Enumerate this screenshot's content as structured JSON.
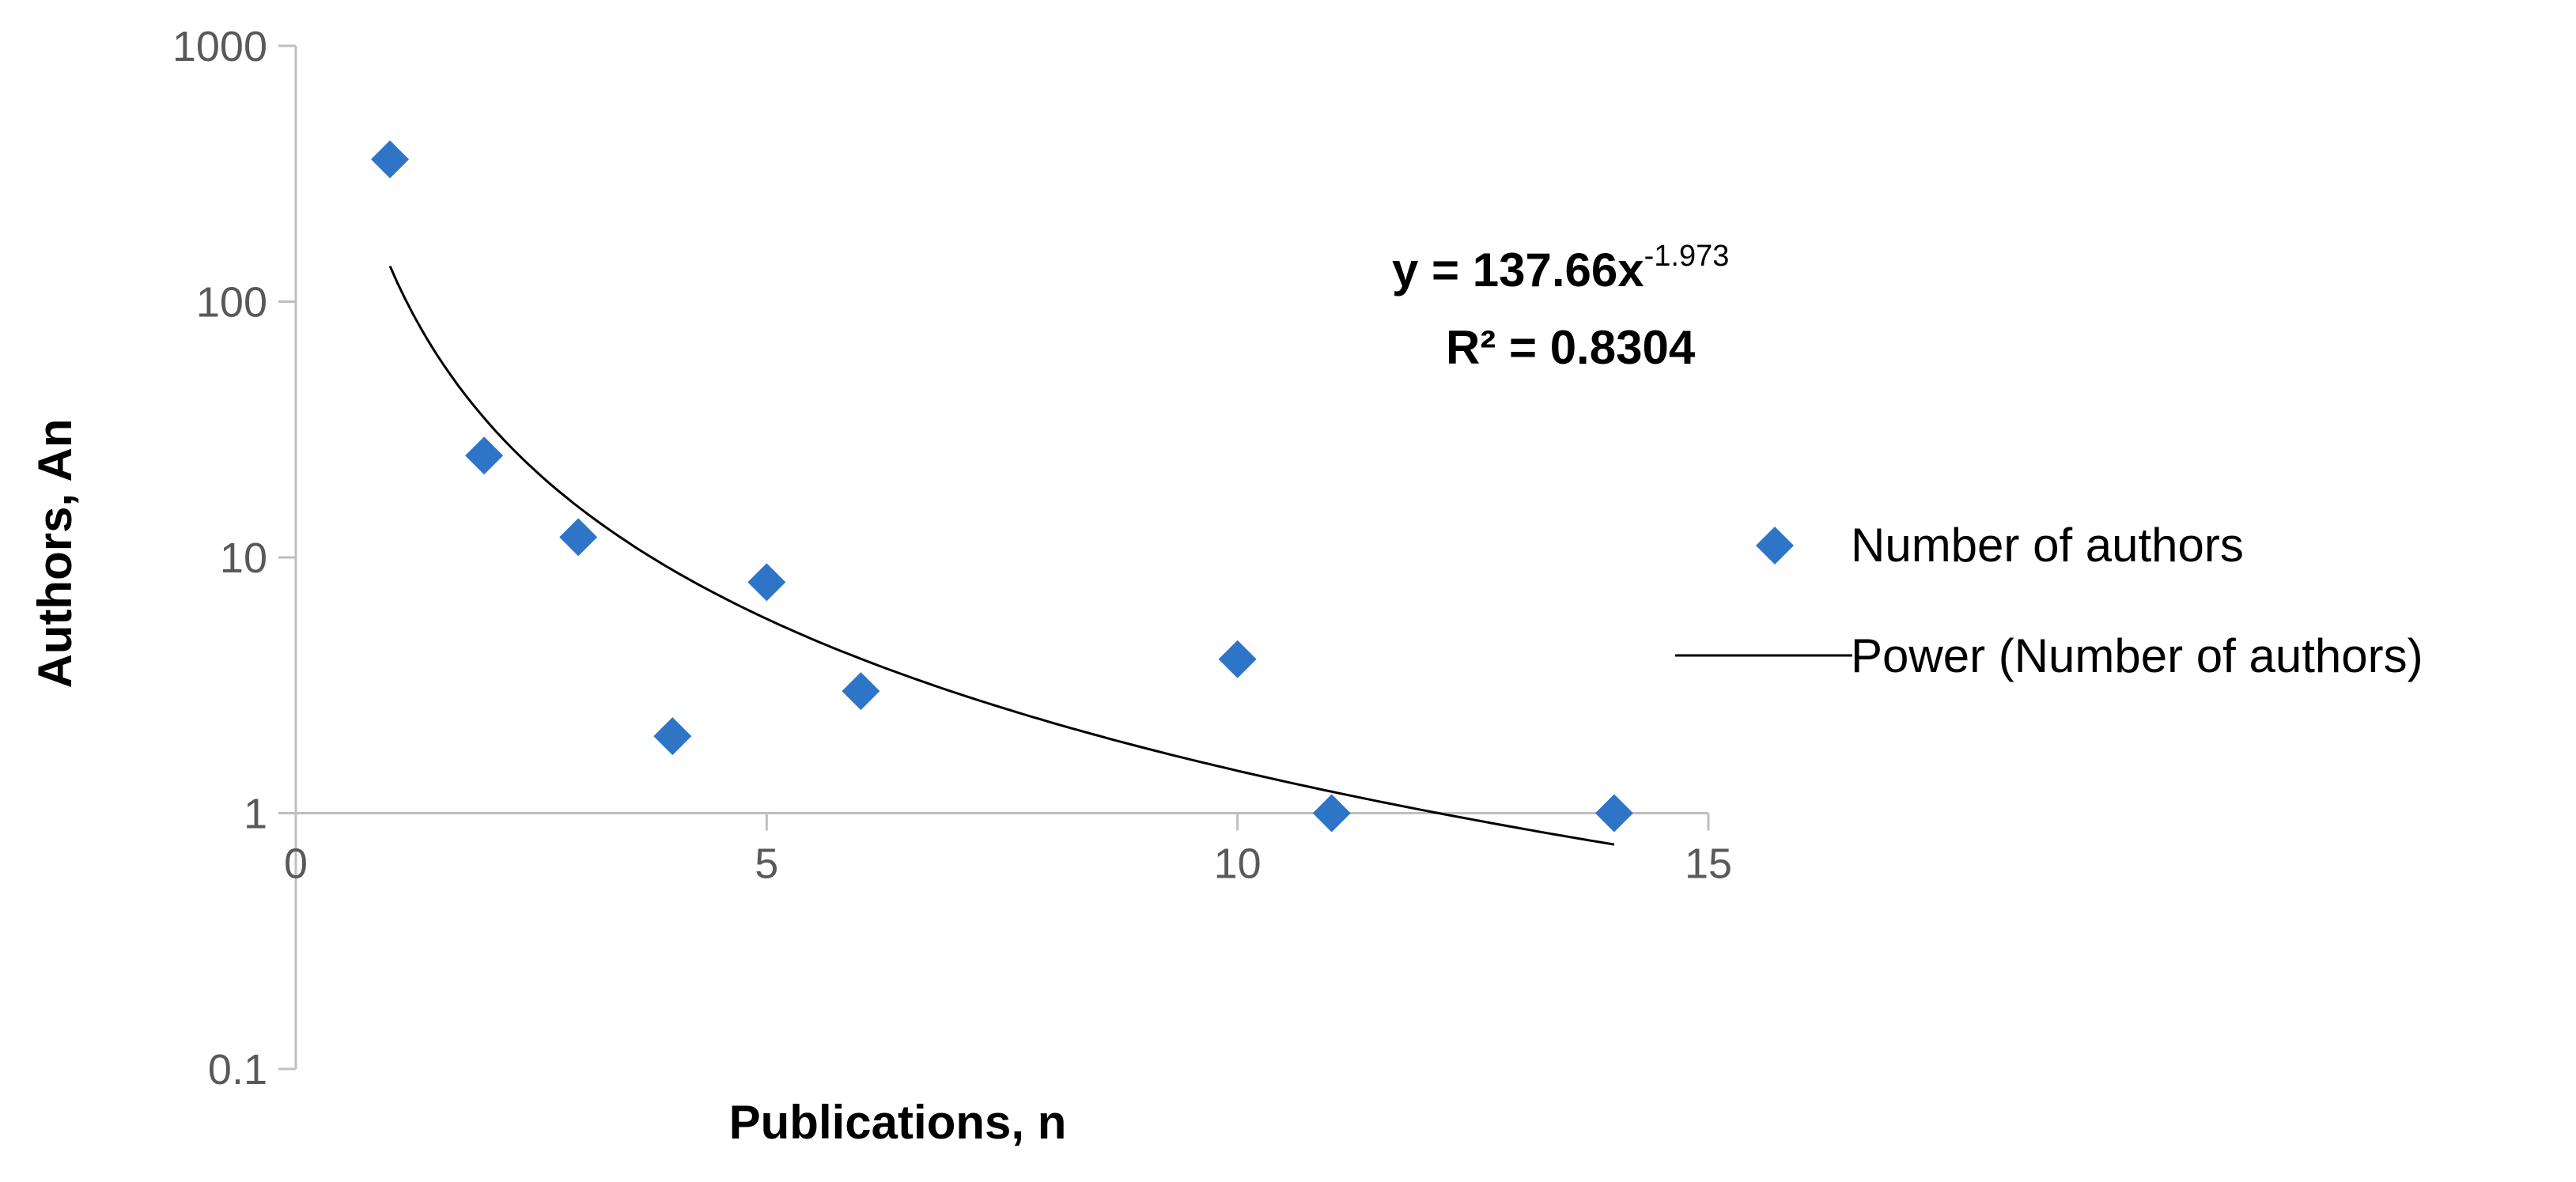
{
  "chart_data": {
    "type": "scatter",
    "xlabel": "Publications, n",
    "ylabel": "Authors, An",
    "xlim": [
      0,
      15
    ],
    "ylim": [
      0.1,
      1000
    ],
    "y_scale": "log",
    "x_axis_crosses_y_at": 1,
    "x_ticks": [
      0,
      5,
      10,
      15
    ],
    "x_tick_labels": [
      "0",
      "5",
      "10",
      "15"
    ],
    "y_ticks": [
      0.1,
      1,
      10,
      100,
      1000
    ],
    "y_tick_labels": [
      "0.1",
      "1",
      "10",
      "100",
      "1000"
    ],
    "grid": false,
    "legend_position": "right",
    "series": [
      {
        "name": "Number of authors",
        "kind": "points",
        "marker": "diamond",
        "color": "#2E75C7",
        "x": [
          1,
          2,
          3,
          4,
          5,
          6,
          10,
          11,
          14
        ],
        "y": [
          360,
          25,
          12,
          2,
          8,
          3,
          4,
          1,
          1
        ]
      },
      {
        "name": "Power (Number of authors)",
        "kind": "trendline",
        "fit": "power",
        "color": "#000000",
        "coefficient": 137.66,
        "exponent": -1.973,
        "x_range": [
          1,
          14
        ]
      }
    ],
    "annotation": {
      "equation_base": "y = 137.66x",
      "equation_exponent": "-1.973",
      "r_squared": "R² = 0.8304"
    }
  }
}
